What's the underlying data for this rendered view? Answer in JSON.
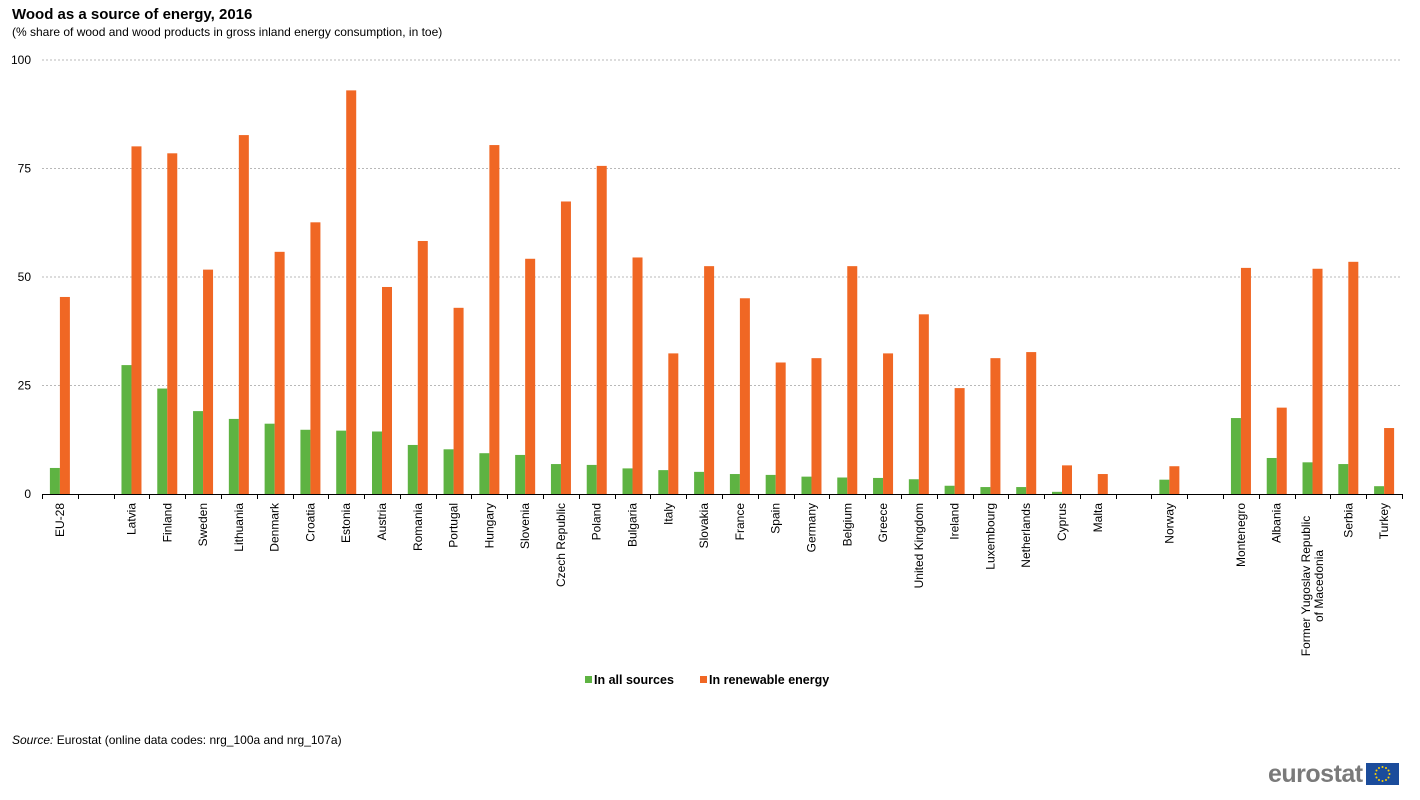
{
  "chart_data": {
    "type": "bar",
    "title": "Wood as a source of energy, 2016",
    "subtitle": "(% share of wood and wood products in gross inland energy consumption, in toe)",
    "ylim": [
      0,
      100
    ],
    "yticks": [
      0,
      25,
      50,
      75,
      100
    ],
    "grid": true,
    "legend_position": "bottom",
    "categories": [
      "EU-28",
      "",
      "Latvia",
      "Finland",
      "Sweden",
      "Lithuania",
      "Denmark",
      "Croatia",
      "Estonia",
      "Austria",
      "Romania",
      "Portugal",
      "Hungary",
      "Slovenia",
      "Czech Republic",
      "Poland",
      "Bulgaria",
      "Italy",
      "Slovakia",
      "France",
      "Spain",
      "Germany",
      "Belgium",
      "Greece",
      "United Kingdom",
      "Ireland",
      "Luxembourg",
      "Netherlands",
      "Cyprus",
      "Malta",
      "",
      "Norway",
      "",
      "Montenegro",
      "Albania",
      "Former Yugoslav Republic of Macedonia",
      "Serbia",
      "Turkey"
    ],
    "series": [
      {
        "name": "In all sources",
        "color": "#5eb342",
        "values": [
          6.0,
          null,
          29.7,
          24.3,
          19.1,
          17.3,
          16.2,
          14.8,
          14.6,
          14.4,
          11.3,
          10.3,
          9.4,
          9.0,
          6.9,
          6.7,
          5.9,
          5.5,
          5.1,
          4.6,
          4.4,
          4.0,
          3.8,
          3.7,
          3.4,
          1.9,
          1.6,
          1.6,
          0.5,
          0.0,
          null,
          3.3,
          null,
          17.5,
          8.3,
          7.3,
          6.9,
          1.8
        ]
      },
      {
        "name": "In renewable energy",
        "color": "#f06724",
        "values": [
          45.4,
          null,
          80.1,
          78.5,
          51.7,
          82.7,
          55.8,
          62.6,
          93.0,
          47.7,
          58.3,
          42.9,
          80.4,
          54.2,
          67.4,
          75.6,
          54.5,
          32.4,
          52.5,
          45.1,
          30.3,
          31.3,
          52.5,
          32.4,
          41.4,
          24.4,
          31.3,
          32.7,
          6.6,
          4.6,
          null,
          6.4,
          null,
          52.1,
          19.9,
          51.9,
          53.5,
          15.2
        ]
      }
    ]
  },
  "source": {
    "label": "Source:",
    "text": " Eurostat (online data codes: nrg_100a and nrg_107a)"
  },
  "logo": {
    "text": "eurostat"
  }
}
